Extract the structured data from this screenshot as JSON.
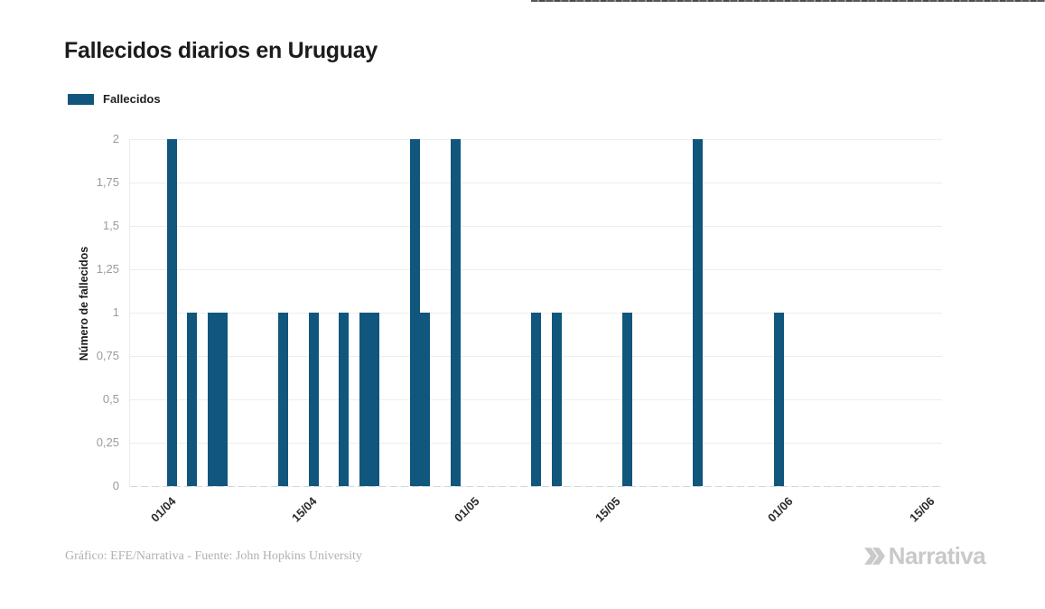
{
  "page": {
    "credit": "Gráfico: EFE/Narrativa - Fuente: John Hopkins University",
    "brand": "Narrativa"
  },
  "legend": {
    "label": "Fallecidos"
  },
  "colors": {
    "bar": "#11567c",
    "logo": "#c9c9c9"
  },
  "chart_data": {
    "type": "bar",
    "title": "Fallecidos diarios en Uruguay",
    "xlabel": "",
    "ylabel": "Número de fallecidos",
    "ylim": [
      0,
      2
    ],
    "grid": true,
    "legend_position": "top-left",
    "y_ticks": [
      "0",
      "0,25",
      "0,5",
      "0,75",
      "1",
      "1,25",
      "1,5",
      "1,75",
      "2"
    ],
    "x_ticks": [
      "01/04",
      "15/04",
      "01/05",
      "15/05",
      "01/06",
      "15/06"
    ],
    "series": [
      {
        "name": "Fallecidos",
        "points": [
          {
            "date": "01/04",
            "value": 2
          },
          {
            "date": "03/04",
            "value": 1
          },
          {
            "date": "05/04",
            "value": 1
          },
          {
            "date": "06/04",
            "value": 1
          },
          {
            "date": "12/04",
            "value": 1
          },
          {
            "date": "15/04",
            "value": 1
          },
          {
            "date": "18/04",
            "value": 1
          },
          {
            "date": "20/04",
            "value": 1
          },
          {
            "date": "21/04",
            "value": 1
          },
          {
            "date": "25/04",
            "value": 2
          },
          {
            "date": "26/04",
            "value": 1
          },
          {
            "date": "29/04",
            "value": 2
          },
          {
            "date": "07/05",
            "value": 1
          },
          {
            "date": "09/05",
            "value": 1
          },
          {
            "date": "16/05",
            "value": 1
          },
          {
            "date": "23/05",
            "value": 2
          },
          {
            "date": "31/05",
            "value": 1
          }
        ]
      }
    ]
  }
}
